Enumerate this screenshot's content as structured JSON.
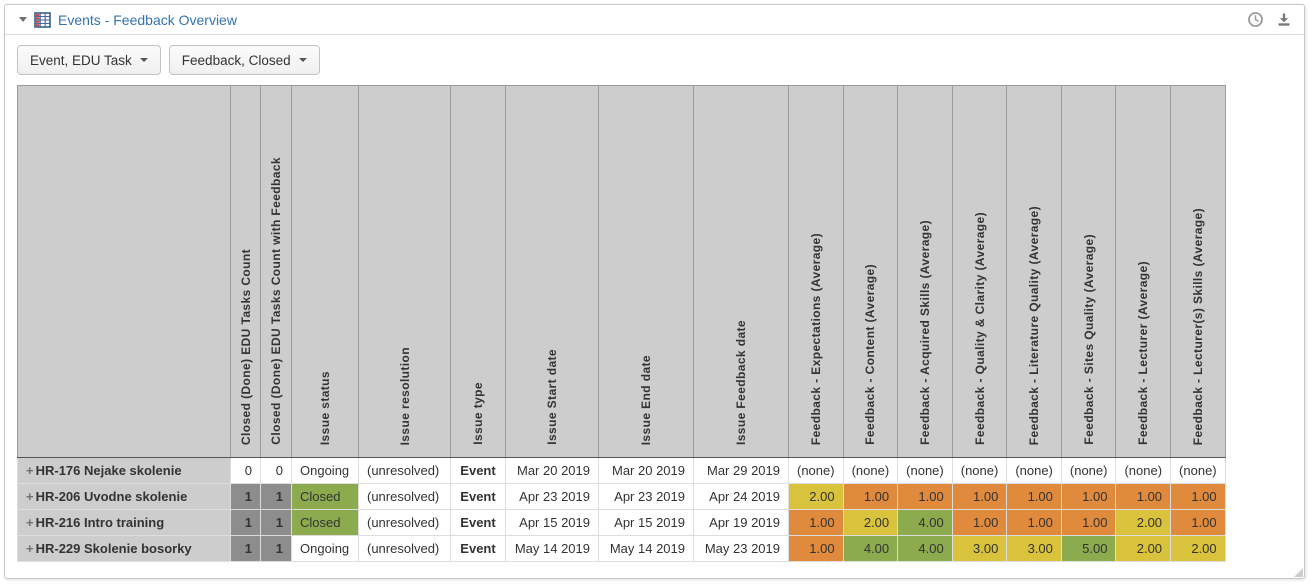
{
  "panel": {
    "title": "Events - Feedback Overview",
    "icons": {
      "collapse": "caret-down",
      "report_type": "table-grid",
      "refresh_time": "clock",
      "export": "download"
    }
  },
  "toolbar": {
    "buttons": [
      {
        "label": "Event, EDU Task"
      },
      {
        "label": "Feedback, Closed"
      }
    ]
  },
  "colors": {
    "link_blue": "#3572b0",
    "header_gray": "#cdcdcd",
    "count_gray": "#8d8d8d",
    "status_green": "#8caa4e",
    "score_orange": "#df8a3d",
    "score_yellow": "#d9c33c",
    "score_green": "#8caa4e",
    "muted_text": "#c6c6c6"
  },
  "table": {
    "columns": [
      "Closed (Done) EDU Tasks Count",
      "Closed (Done) EDU Tasks Count with Feedback",
      "Issue status",
      "Issue resolution",
      "Issue type",
      "Issue Start date",
      "Issue End date",
      "Issue Feedback date",
      "Feedback - Expectations (Average)",
      "Feedback - Content (Average)",
      "Feedback - Acquired Skills (Average)",
      "Feedback - Quality & Clarity (Average)",
      "Feedback - Literature Quality (Average)",
      "Feedback - Sites Quality (Average)",
      "Feedback - Lecturer (Average)",
      "Feedback - Lecturer(s) Skills (Average)"
    ],
    "expand_glyph": "+",
    "rows": [
      {
        "label": "HR-176 Nejake skolenie",
        "tasks_count": "0",
        "tasks_count_with_feedback": "0",
        "counts_style": "zero",
        "status": "Ongoing",
        "status_style": "plain",
        "resolution": "(unresolved)",
        "type": "Event",
        "start_date": "Mar 20 2019",
        "end_date": "Mar 20 2019",
        "feedback_date": "Mar 29 2019",
        "feedback": [
          {
            "value": "(none)",
            "color": "none"
          },
          {
            "value": "(none)",
            "color": "none"
          },
          {
            "value": "(none)",
            "color": "none"
          },
          {
            "value": "(none)",
            "color": "none"
          },
          {
            "value": "(none)",
            "color": "none"
          },
          {
            "value": "(none)",
            "color": "none"
          },
          {
            "value": "(none)",
            "color": "none"
          },
          {
            "value": "(none)",
            "color": "none"
          }
        ]
      },
      {
        "label": "HR-206 Uvodne skolenie",
        "tasks_count": "1",
        "tasks_count_with_feedback": "1",
        "counts_style": "filled",
        "status": "Closed",
        "status_style": "badge",
        "resolution": "(unresolved)",
        "type": "Event",
        "start_date": "Apr 23 2019",
        "end_date": "Apr 23 2019",
        "feedback_date": "Apr 24 2019",
        "feedback": [
          {
            "value": "2.00",
            "color": "yellow"
          },
          {
            "value": "1.00",
            "color": "orange"
          },
          {
            "value": "1.00",
            "color": "orange"
          },
          {
            "value": "1.00",
            "color": "orange"
          },
          {
            "value": "1.00",
            "color": "orange"
          },
          {
            "value": "1.00",
            "color": "orange"
          },
          {
            "value": "1.00",
            "color": "orange"
          },
          {
            "value": "1.00",
            "color": "orange"
          }
        ]
      },
      {
        "label": "HR-216 Intro training",
        "tasks_count": "1",
        "tasks_count_with_feedback": "1",
        "counts_style": "filled",
        "status": "Closed",
        "status_style": "badge",
        "resolution": "(unresolved)",
        "type": "Event",
        "start_date": "Apr 15 2019",
        "end_date": "Apr 15 2019",
        "feedback_date": "Apr 19 2019",
        "feedback": [
          {
            "value": "1.00",
            "color": "orange"
          },
          {
            "value": "2.00",
            "color": "yellow"
          },
          {
            "value": "4.00",
            "color": "green"
          },
          {
            "value": "1.00",
            "color": "orange"
          },
          {
            "value": "1.00",
            "color": "orange"
          },
          {
            "value": "1.00",
            "color": "orange"
          },
          {
            "value": "2.00",
            "color": "yellow"
          },
          {
            "value": "1.00",
            "color": "orange"
          }
        ]
      },
      {
        "label": "HR-229 Skolenie bosorky",
        "tasks_count": "1",
        "tasks_count_with_feedback": "1",
        "counts_style": "filled",
        "status": "Ongoing",
        "status_style": "plain",
        "resolution": "(unresolved)",
        "type": "Event",
        "start_date": "May 14 2019",
        "end_date": "May 14 2019",
        "feedback_date": "May 23 2019",
        "feedback": [
          {
            "value": "1.00",
            "color": "orange"
          },
          {
            "value": "4.00",
            "color": "green"
          },
          {
            "value": "4.00",
            "color": "green"
          },
          {
            "value": "3.00",
            "color": "yellow"
          },
          {
            "value": "3.00",
            "color": "yellow"
          },
          {
            "value": "5.00",
            "color": "green"
          },
          {
            "value": "2.00",
            "color": "yellow"
          },
          {
            "value": "2.00",
            "color": "yellow"
          }
        ]
      }
    ]
  }
}
